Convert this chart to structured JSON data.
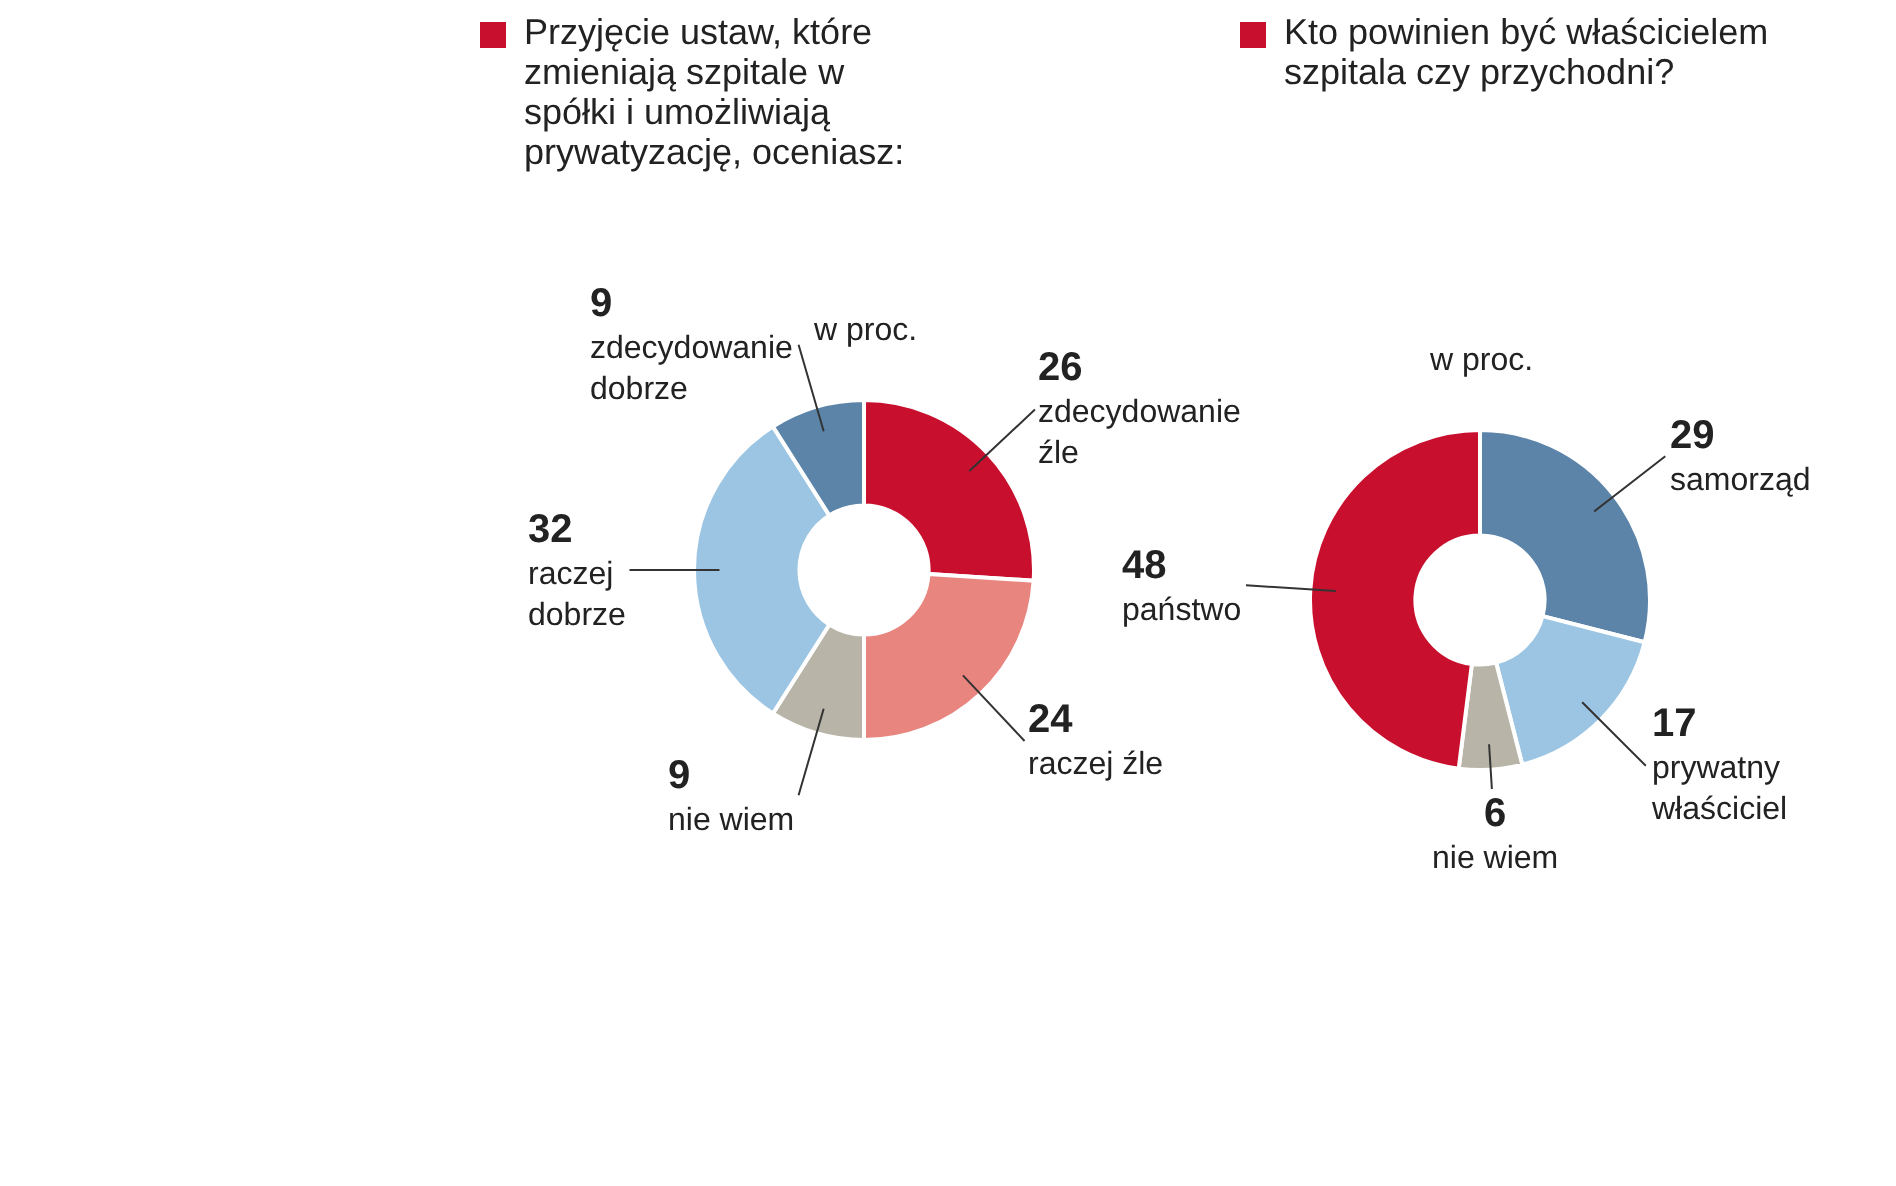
{
  "chart_data": [
    {
      "type": "donut",
      "title": "Przyjęcie ustaw, które zmieniają szpitale w spółki i umożliwiają prywatyzację, oceniasz:",
      "subtitle": "w proc.",
      "categories": [
        "zdecydowanie źle",
        "raczej źle",
        "nie wiem",
        "raczej dobrze",
        "zdecydowanie dobrze"
      ],
      "values": [
        26,
        24,
        9,
        32,
        9
      ],
      "colors": [
        "#c8102e",
        "#e8857f",
        "#b8b5a8",
        "#9cc5e3",
        "#5b84a8"
      ],
      "data_labels": true
    },
    {
      "type": "donut",
      "title": "Kto powinien być właścicielem szpitala czy przychodni?",
      "subtitle": "w proc.",
      "categories": [
        "samorząd",
        "prywatny właściciel",
        "nie wiem",
        "państwo"
      ],
      "values": [
        29,
        17,
        6,
        48
      ],
      "colors": [
        "#5b84a8",
        "#9cc5e3",
        "#b8b5a8",
        "#c8102e"
      ],
      "data_labels": true
    }
  ]
}
